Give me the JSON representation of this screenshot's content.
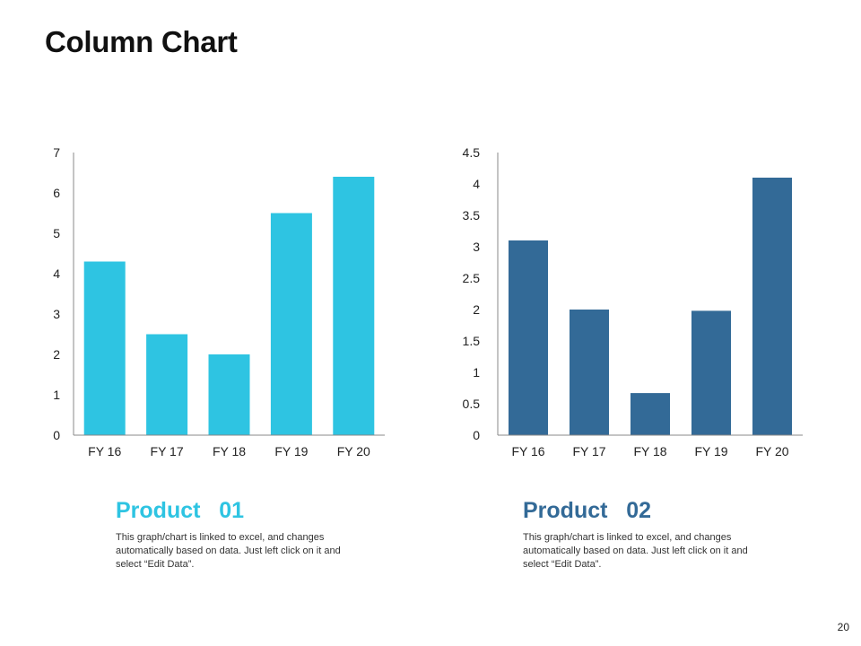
{
  "page": {
    "title": "Column Chart",
    "page_number": "20"
  },
  "chart_data": [
    {
      "type": "bar",
      "title": "",
      "categories": [
        "FY 16",
        "FY 17",
        "FY 18",
        "FY 19",
        "FY 20"
      ],
      "values": [
        4.3,
        2.5,
        2.0,
        5.5,
        6.4
      ],
      "ylim": [
        0,
        7
      ],
      "yticks": [
        "0",
        "1",
        "2",
        "3",
        "4",
        "5",
        "6",
        "7"
      ],
      "color": "#2EC4E2",
      "grid": false
    },
    {
      "type": "bar",
      "title": "",
      "categories": [
        "FY 16",
        "FY 17",
        "FY 18",
        "FY 19",
        "FY 20"
      ],
      "values": [
        3.1,
        2.0,
        0.67,
        1.98,
        4.1
      ],
      "ylim": [
        0,
        4.5
      ],
      "yticks": [
        "0",
        "0.5",
        "1",
        "1.5",
        "2",
        "2.5",
        "3",
        "3.5",
        "4",
        "4.5"
      ],
      "color": "#336A97",
      "grid": false
    }
  ],
  "products": [
    {
      "label": "Product   01",
      "color": "#2EC4E2",
      "description": "This graph/chart is linked to excel, and changes automatically based on data. Just left click on it and select “Edit Data”."
    },
    {
      "label": "Product   02",
      "color": "#336A97",
      "description": "This graph/chart is linked to excel, and changes automatically based on data. Just left click on it and select “Edit Data”."
    }
  ]
}
